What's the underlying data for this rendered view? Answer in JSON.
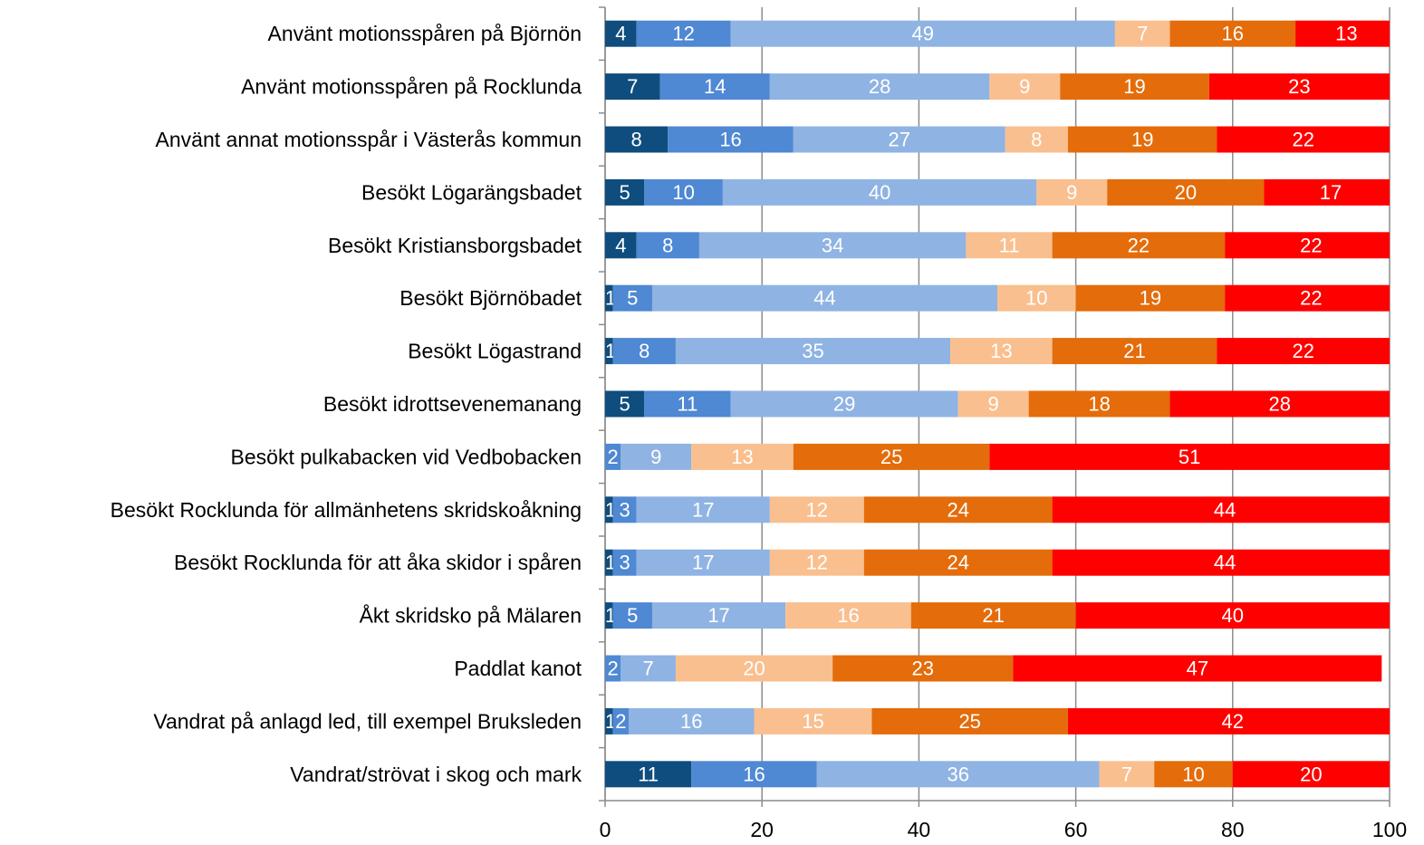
{
  "chart_data": {
    "type": "stacked-bar-horizontal",
    "categories": [
      "Använt motionsspåren på Björnön",
      "Använt motionsspåren på Rocklunda",
      "Använt annat motionsspår i Västerås kommun",
      "Besökt Lögarängsbadet",
      "Besökt Kristiansborgsbadet",
      "Besökt Björnöbadet",
      "Besökt Lögastrand",
      "Besökt idrottsevenemanang",
      "Besökt pulkabacken vid Vedbobacken",
      "Besökt Rocklunda för allmänhetens skridskoåkning",
      "Besökt Rocklunda för att åka skidor i spåren",
      "Åkt skridsko på Mälaren",
      "Paddlat kanot",
      "Vandrat på anlagd led, till exempel Bruksleden",
      "Vandrat/strövat i skog och mark"
    ],
    "series": [
      {
        "color": "#0e4d7e",
        "values": [
          4,
          7,
          8,
          5,
          4,
          1,
          1,
          5,
          null,
          1,
          1,
          1,
          null,
          1,
          11
        ]
      },
      {
        "color": "#4f88d3",
        "values": [
          12,
          14,
          16,
          10,
          8,
          5,
          8,
          11,
          2,
          3,
          3,
          5,
          2,
          2,
          16
        ]
      },
      {
        "color": "#8fb3e3",
        "values": [
          49,
          28,
          27,
          40,
          34,
          44,
          35,
          29,
          9,
          17,
          17,
          17,
          7,
          16,
          36
        ]
      },
      {
        "color": "#f9bf8f",
        "values": [
          7,
          9,
          8,
          9,
          11,
          10,
          13,
          9,
          13,
          12,
          12,
          16,
          20,
          15,
          7
        ]
      },
      {
        "color": "#e46c0a",
        "values": [
          16,
          19,
          19,
          20,
          22,
          19,
          21,
          18,
          25,
          24,
          24,
          21,
          23,
          25,
          10
        ]
      },
      {
        "color": "#ff0000",
        "values": [
          13,
          23,
          22,
          17,
          22,
          22,
          22,
          28,
          51,
          44,
          44,
          40,
          47,
          42,
          20
        ]
      }
    ],
    "xlim": [
      0,
      100
    ],
    "xticks": [
      0,
      20,
      40,
      60,
      80,
      100
    ],
    "grid": true
  }
}
